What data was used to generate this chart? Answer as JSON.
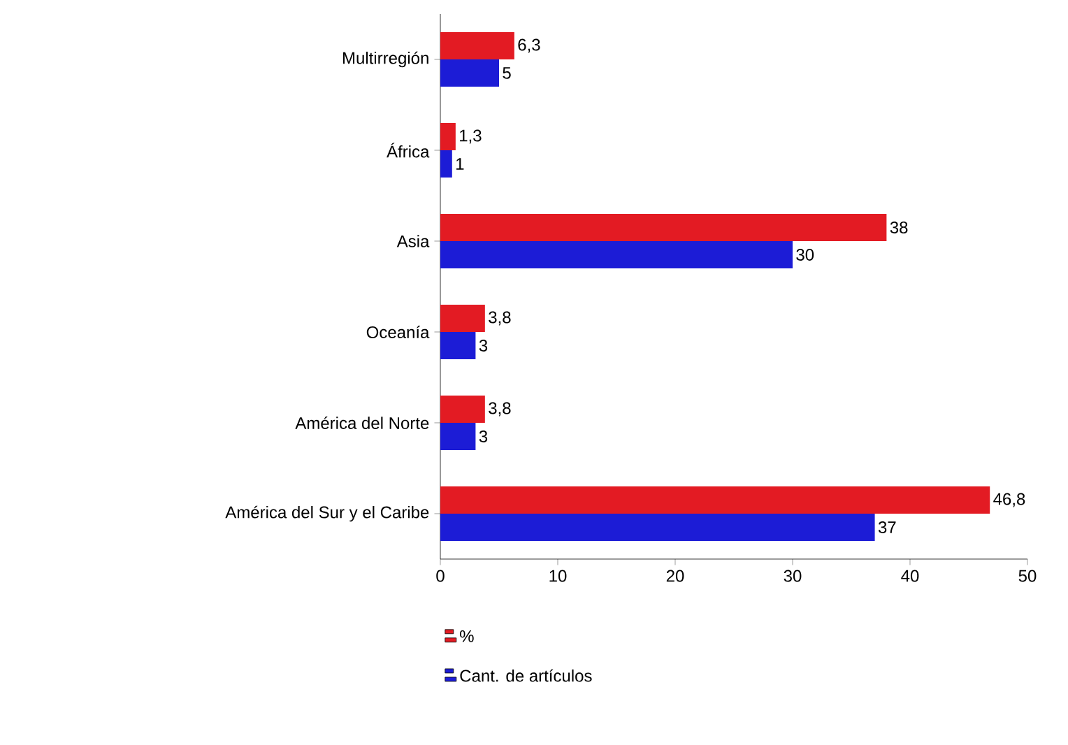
{
  "chart_data": {
    "type": "bar",
    "orientation": "horizontal",
    "categories": [
      "Multirregión",
      "África",
      "Asia",
      "Oceanía",
      "América del Norte",
      "América del Sur y el Caribe"
    ],
    "series": [
      {
        "name": "%",
        "color": "#e31b23",
        "values": [
          6.3,
          1.3,
          38,
          3.8,
          3.8,
          46.8
        ],
        "value_labels": [
          "6,3",
          "1,3",
          "38",
          "3,8",
          "3,8",
          "46,8"
        ]
      },
      {
        "name": "Cant. de artículos",
        "color": "#1c1cd6",
        "values": [
          5,
          1,
          30,
          3,
          3,
          37
        ],
        "value_labels": [
          "5",
          "1",
          "30",
          "3",
          "3",
          "37"
        ]
      }
    ],
    "xlim": [
      0,
      50
    ],
    "xticks": [
      0,
      10,
      20,
      30,
      40,
      50
    ],
    "legend": "bottom"
  }
}
